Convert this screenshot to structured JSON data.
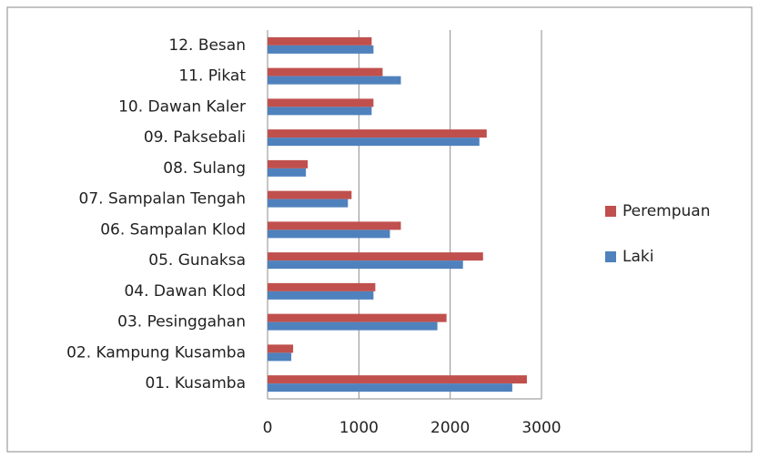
{
  "chart_data": {
    "type": "hbar",
    "categories": [
      "01. Kusamba",
      "02. Kampung Kusamba",
      "03. Pesinggahan",
      "04. Dawan Klod",
      "05. Gunaksa",
      "06. Sampalan Klod",
      "07. Sampalan Tengah",
      "08. Sulang",
      "09. Paksebali",
      "10. Dawan Kaler",
      "11. Pikat",
      "12. Besan"
    ],
    "series": [
      {
        "name": "Perempuan",
        "color": "#c0504d",
        "values": [
          2840,
          280,
          1960,
          1180,
          2360,
          1460,
          920,
          440,
          2400,
          1160,
          1260,
          1140
        ]
      },
      {
        "name": "Laki",
        "color": "#4f81bd",
        "values": [
          2680,
          260,
          1860,
          1160,
          2140,
          1340,
          880,
          420,
          2320,
          1140,
          1460,
          1160
        ]
      }
    ],
    "xlim": [
      0,
      3000
    ],
    "xticks": [
      0,
      1000,
      2000,
      3000
    ],
    "grid": true,
    "legend": "right"
  }
}
